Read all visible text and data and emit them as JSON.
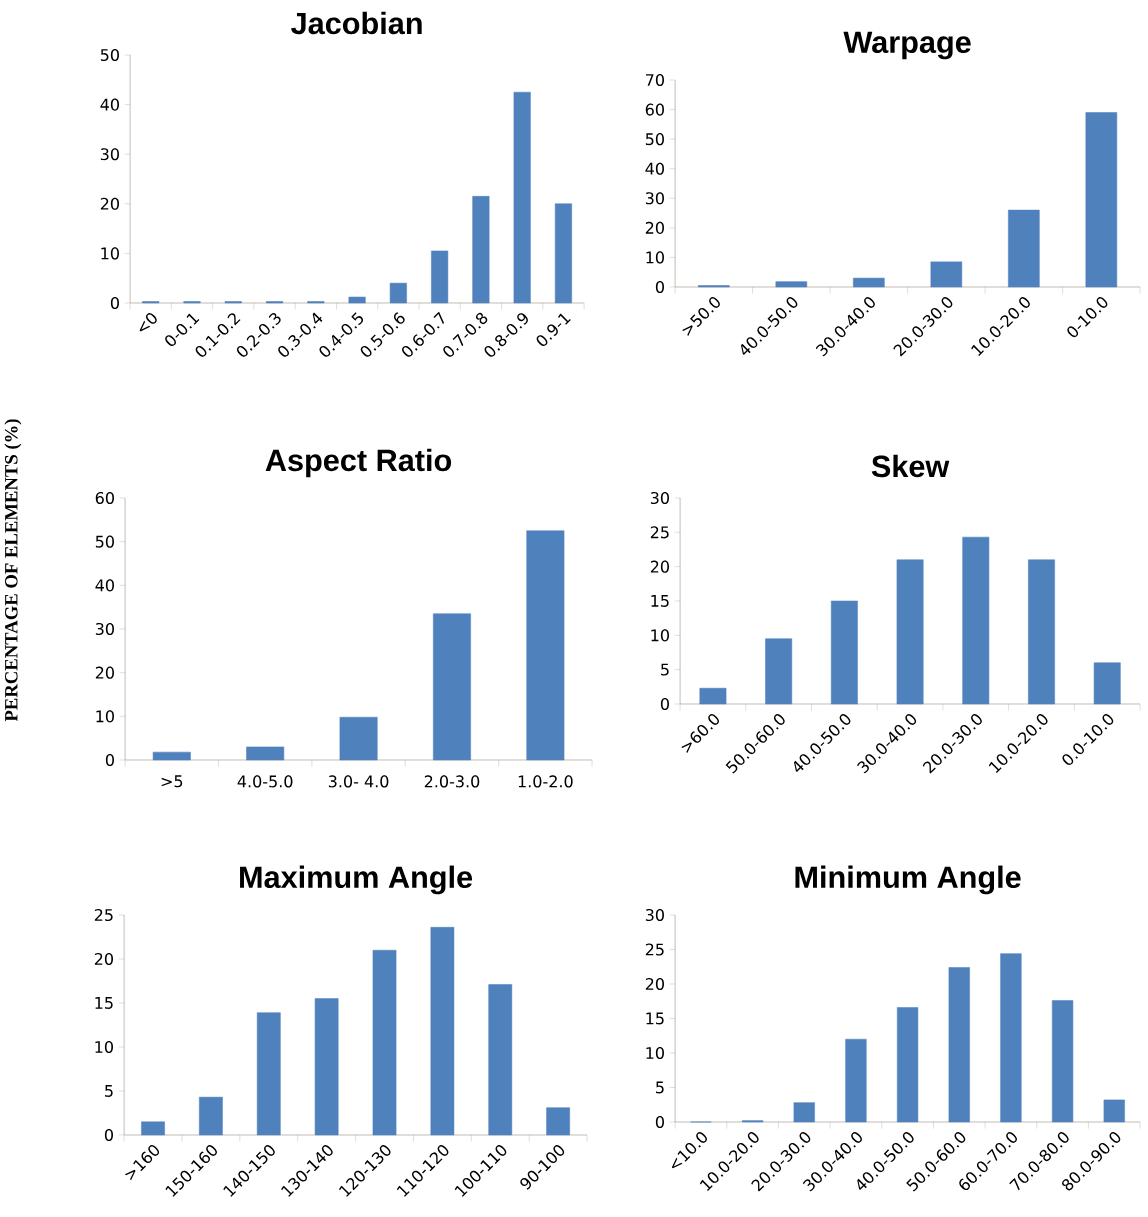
{
  "chart_data": [
    {
      "type": "bar",
      "title": "Jacobian",
      "categories": [
        "<0",
        "0-0.1",
        "0.1-0.2",
        "0.2-0.3",
        "0.3-0.4",
        "0.4-0.5",
        "0.5-0.6",
        "0.6-0.7",
        "0.7-0.8",
        "0.8-0.9",
        "0.9-1"
      ],
      "values": [
        0.3,
        0.3,
        0.3,
        0.3,
        0.3,
        1.2,
        4,
        10.5,
        21.5,
        42.5,
        20
      ],
      "color": "#4f81bd",
      "ylim": [
        0,
        50
      ],
      "yticks": [
        0,
        10,
        20,
        30,
        40,
        50
      ]
    },
    {
      "type": "bar",
      "title": "Warpage",
      "categories": [
        ">50.0",
        "40.0-50.0",
        "30.0-40.0",
        "20.0-30.0",
        "10.0-20.0",
        "0-10.0"
      ],
      "values": [
        0.5,
        1.8,
        3,
        8.5,
        26,
        59
      ],
      "color": "#4f81bd",
      "ylim": [
        0,
        70
      ],
      "yticks": [
        0,
        10,
        20,
        30,
        40,
        50,
        60,
        70
      ]
    },
    {
      "type": "bar",
      "title": "Aspect Ratio",
      "ylabel": "PERCENTAGE OF ELEMENTS (%)",
      "categories": [
        ">5",
        "4.0-5.0",
        "3.0- 4.0",
        "2.0-3.0",
        "1.0-2.0"
      ],
      "values": [
        1.8,
        3,
        9.8,
        33.5,
        52.5
      ],
      "color": "#4f81bd",
      "ylim": [
        0,
        60
      ],
      "yticks": [
        0,
        10,
        20,
        30,
        40,
        50,
        60
      ]
    },
    {
      "type": "bar",
      "title": "Skew",
      "categories": [
        ">60.0",
        "50.0-60.0",
        "40.0-50.0",
        "30.0-40.0",
        "20.0-30.0",
        "10.0-20.0",
        "0.0-10.0"
      ],
      "values": [
        2.3,
        9.5,
        15,
        21,
        24.3,
        21,
        6
      ],
      "color": "#4f81bd",
      "ylim": [
        0,
        30
      ],
      "yticks": [
        0,
        5,
        10,
        15,
        20,
        25,
        30
      ]
    },
    {
      "type": "bar",
      "title": "Maximum Angle",
      "categories": [
        ">160",
        "150-160",
        "140-150",
        "130-140",
        "120-130",
        "110-120",
        "100-110",
        "90-100"
      ],
      "values": [
        1.5,
        4.3,
        13.9,
        15.5,
        21,
        23.6,
        17.1,
        3.1
      ],
      "color": "#4f81bd",
      "ylim": [
        0,
        25
      ],
      "yticks": [
        0,
        5,
        10,
        15,
        20,
        25
      ]
    },
    {
      "type": "bar",
      "title": "Minimum Angle",
      "categories": [
        "<10.0",
        "10.0-20.0",
        "20.0-30.0",
        "30.0-40.0",
        "40.0-50.0",
        "50.0-60.0",
        "60.0-70.0",
        "70.0-80.0",
        "80.0-90.0"
      ],
      "values": [
        0,
        0.2,
        2.8,
        12,
        16.6,
        22.4,
        24.4,
        17.6,
        3.2
      ],
      "color": "#4f81bd",
      "ylim": [
        0,
        30
      ],
      "yticks": [
        0,
        5,
        10,
        15,
        20,
        25,
        30
      ]
    }
  ]
}
